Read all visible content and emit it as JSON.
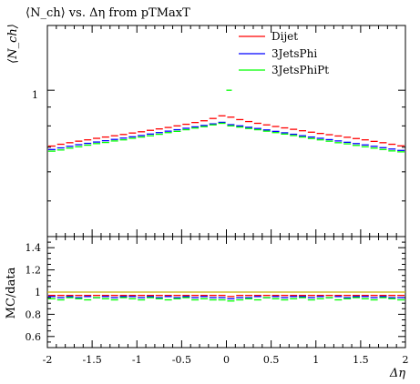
{
  "chart_data": [
    {
      "type": "scatter",
      "title": "⟨N_ch⟩ vs. Δη from pTMaxT",
      "ylabel": "⟨N_ch⟩",
      "xlabel": "",
      "xlim": [
        -2,
        2
      ],
      "ylim": [
        0.4,
        1.5
      ],
      "y_scale": "log",
      "y_ticks": [
        {
          "value": 1,
          "label": "1"
        }
      ],
      "legend_position": "top-right",
      "x": [
        -1.95,
        -1.85,
        -1.75,
        -1.65,
        -1.55,
        -1.45,
        -1.35,
        -1.25,
        -1.15,
        -1.05,
        -0.95,
        -0.85,
        -0.75,
        -0.65,
        -0.55,
        -0.45,
        -0.35,
        -0.25,
        -0.15,
        -0.05,
        0.05,
        0.15,
        0.25,
        0.35,
        0.45,
        0.55,
        0.65,
        0.75,
        0.85,
        0.95,
        1.05,
        1.15,
        1.25,
        1.35,
        1.45,
        1.55,
        1.65,
        1.75,
        1.85,
        1.95
      ],
      "series": [
        {
          "name": "Dijet",
          "color": "#ff0000",
          "values": [
            0.705,
            0.713,
            0.72,
            0.727,
            0.733,
            0.74,
            0.746,
            0.752,
            0.758,
            0.765,
            0.771,
            0.778,
            0.785,
            0.792,
            0.8,
            0.808,
            0.817,
            0.826,
            0.838,
            0.852,
            0.845,
            0.832,
            0.822,
            0.813,
            0.805,
            0.797,
            0.79,
            0.783,
            0.776,
            0.769,
            0.763,
            0.757,
            0.751,
            0.745,
            0.739,
            0.733,
            0.726,
            0.72,
            0.713,
            0.706
          ]
        },
        {
          "name": "3JetsPhi",
          "color": "#0000ff",
          "values": [
            0.69,
            0.697,
            0.704,
            0.711,
            0.717,
            0.723,
            0.729,
            0.735,
            0.741,
            0.747,
            0.753,
            0.76,
            0.767,
            0.774,
            0.781,
            0.788,
            0.795,
            0.802,
            0.81,
            0.818,
            0.806,
            0.8,
            0.793,
            0.787,
            0.78,
            0.773,
            0.766,
            0.759,
            0.752,
            0.746,
            0.74,
            0.734,
            0.728,
            0.722,
            0.716,
            0.71,
            0.704,
            0.698,
            0.692,
            0.686
          ]
        },
        {
          "name": "3JetsPhiPt",
          "color": "#00ff00",
          "values": [
            0.683,
            0.688,
            0.696,
            0.702,
            0.709,
            0.716,
            0.721,
            0.728,
            0.733,
            0.74,
            0.746,
            0.752,
            0.759,
            0.767,
            0.773,
            0.781,
            0.789,
            0.796,
            0.805,
            0.813,
            0.8,
            0.794,
            0.787,
            0.781,
            0.774,
            0.767,
            0.76,
            0.753,
            0.746,
            0.739,
            0.733,
            0.727,
            0.72,
            0.715,
            0.708,
            0.702,
            0.696,
            0.69,
            0.684,
            0.68
          ]
        }
      ],
      "extra_points": [
        {
          "x": 0.03,
          "y": 1.0,
          "color": "#00ff00"
        }
      ]
    },
    {
      "type": "scatter",
      "ylabel": "MC/data",
      "xlabel": "Δη",
      "xlim": [
        -2,
        2
      ],
      "ylim": [
        0.5,
        1.5
      ],
      "x_ticks": [
        -2,
        -1.5,
        -1,
        -0.5,
        0,
        0.5,
        1,
        1.5,
        2
      ],
      "y_ticks": [
        0.6,
        0.8,
        1,
        1.2,
        1.4
      ],
      "reference_line": {
        "y": 1.0,
        "color": "#c8b400"
      },
      "series": [
        {
          "name": "Dijet",
          "color": "#ff0000",
          "values": [
            0.97,
            0.97,
            0.97,
            0.97,
            0.97,
            0.97,
            0.97,
            0.97,
            0.97,
            0.97,
            0.97,
            0.97,
            0.97,
            0.97,
            0.97,
            0.97,
            0.97,
            0.97,
            0.97,
            0.97,
            0.96,
            0.97,
            0.97,
            0.97,
            0.97,
            0.97,
            0.97,
            0.97,
            0.97,
            0.97,
            0.97,
            0.97,
            0.97,
            0.97,
            0.97,
            0.97,
            0.97,
            0.97,
            0.97,
            0.97
          ]
        },
        {
          "name": "3JetsPhi",
          "color": "#0000ff",
          "values": [
            0.96,
            0.95,
            0.96,
            0.95,
            0.96,
            0.95,
            0.96,
            0.95,
            0.96,
            0.96,
            0.95,
            0.96,
            0.95,
            0.96,
            0.95,
            0.96,
            0.95,
            0.96,
            0.95,
            0.95,
            0.94,
            0.95,
            0.95,
            0.96,
            0.95,
            0.96,
            0.95,
            0.96,
            0.96,
            0.95,
            0.96,
            0.95,
            0.96,
            0.95,
            0.96,
            0.96,
            0.95,
            0.96,
            0.95,
            0.95
          ]
        },
        {
          "name": "3JetsPhiPt",
          "color": "#00ff00",
          "values": [
            0.94,
            0.93,
            0.95,
            0.94,
            0.93,
            0.95,
            0.94,
            0.93,
            0.95,
            0.94,
            0.93,
            0.95,
            0.94,
            0.93,
            0.94,
            0.95,
            0.93,
            0.94,
            0.93,
            0.93,
            0.92,
            0.93,
            0.94,
            0.93,
            0.95,
            0.94,
            0.93,
            0.94,
            0.95,
            0.93,
            0.94,
            0.95,
            0.93,
            0.94,
            0.95,
            0.94,
            0.93,
            0.95,
            0.94,
            0.93
          ]
        }
      ]
    }
  ]
}
